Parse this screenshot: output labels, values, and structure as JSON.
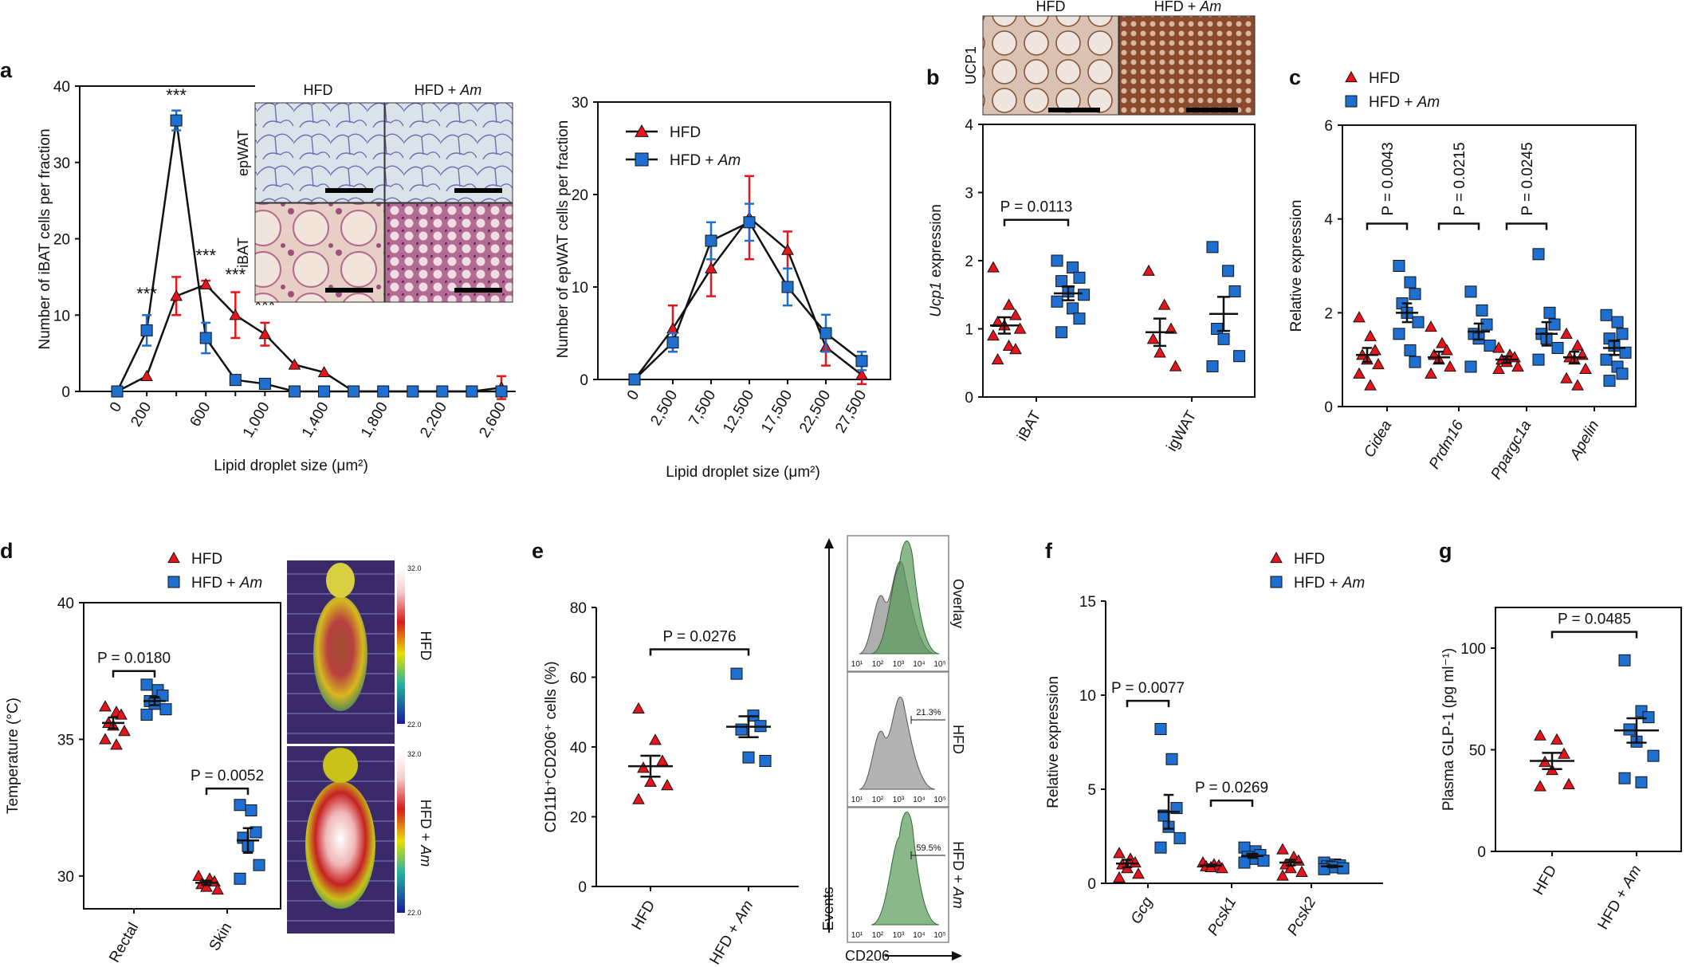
{
  "panels": {
    "a": {
      "letter": "a"
    },
    "b": {
      "letter": "b"
    },
    "c": {
      "letter": "c"
    },
    "d": {
      "letter": "d"
    },
    "e": {
      "letter": "e"
    },
    "f": {
      "letter": "f"
    },
    "g": {
      "letter": "g"
    }
  },
  "colors": {
    "hfd": "#e8141c",
    "am": "#1f6fd1",
    "axis": "#111111",
    "flow_grey": "#9a9a9a",
    "flow_green": "#5a9a5a"
  },
  "micrographs": {
    "a_cols": [
      "HFD",
      "HFD + Am"
    ],
    "a_rows": [
      "epWAT",
      "iBAT"
    ],
    "b_cols": [
      "HFD",
      "HFD + Am"
    ],
    "b_row": "UCP1",
    "d_temp_labels": [
      {
        "hi": "32.0",
        "lo": "22.0",
        "label": "HFD"
      },
      {
        "hi": "32.0",
        "lo": "22.0",
        "label": "HFD + Am"
      }
    ]
  },
  "flow": {
    "row_labels": [
      "Overlay",
      "HFD",
      "HFD + Am"
    ],
    "percent_labels": [
      "",
      "21.3%",
      "59.5%"
    ],
    "y_title": "Events",
    "x_title": "CD206",
    "ticks": [
      "10¹",
      "10²",
      "10³",
      "10⁴",
      "10⁵"
    ]
  },
  "chart_data": [
    {
      "panel": "a-left",
      "type": "line",
      "xlabel": "Lipid droplet size (μm²)",
      "ylabel": "Number of iBAT cells per fraction",
      "x_ticks": [
        "0",
        "200",
        "600",
        "1,000",
        "1,400",
        "1,800",
        "2,200",
        "2,600"
      ],
      "ylim": [
        0,
        40
      ],
      "y_ticks": [
        0,
        10,
        20,
        30,
        40
      ],
      "x": [
        0,
        200,
        400,
        600,
        800,
        1000,
        1200,
        1400,
        1600,
        1800,
        2000,
        2200,
        2400,
        2600
      ],
      "series": [
        {
          "name": "HFD",
          "values": [
            0,
            2,
            12.5,
            14,
            10,
            7.5,
            3.5,
            2.5,
            0,
            0,
            0,
            0,
            0,
            0.5
          ],
          "err": [
            0,
            0,
            2.5,
            0.5,
            3,
            1.5,
            0,
            0,
            0,
            0,
            0,
            0,
            0,
            1.5
          ]
        },
        {
          "name": "HFD + Am",
          "values": [
            0,
            8,
            35.5,
            7,
            1.5,
            1,
            0,
            0,
            0,
            0,
            0,
            0,
            0,
            0
          ],
          "err": [
            0,
            2,
            1.3,
            2,
            0,
            0,
            0,
            0,
            0,
            0,
            0,
            0,
            0,
            0
          ]
        }
      ],
      "annotations": [
        {
          "x": 200,
          "y": 12,
          "text": "***"
        },
        {
          "x": 400,
          "y": 38,
          "text": "***"
        },
        {
          "x": 600,
          "y": 17,
          "text": "***"
        },
        {
          "x": 800,
          "y": 14.5,
          "text": "***"
        },
        {
          "x": 1000,
          "y": 10.5,
          "text": "***"
        }
      ]
    },
    {
      "panel": "a-right",
      "type": "line",
      "xlabel": "Lipid droplet size (μm²)",
      "ylabel": "Number of epWAT cells per fraction",
      "x_ticks": [
        "0",
        "2,500",
        "7,500",
        "12,500",
        "17,500",
        "22,500",
        "27,500"
      ],
      "ylim": [
        0,
        30
      ],
      "y_ticks": [
        0,
        10,
        20,
        30
      ],
      "series": [
        {
          "name": "HFD",
          "values": [
            0,
            5.5,
            12,
            17.5,
            14,
            3.5,
            0.5
          ],
          "err": [
            0,
            2.5,
            3,
            4.5,
            2,
            2,
            1
          ]
        },
        {
          "name": "HFD + Am",
          "values": [
            0,
            4,
            15,
            17,
            10,
            5,
            2
          ],
          "err": [
            0,
            1,
            2,
            2,
            2,
            2,
            1
          ]
        }
      ],
      "legend": [
        "HFD",
        "HFD + Am"
      ]
    },
    {
      "panel": "b",
      "type": "scatter",
      "ylabel": "Ucp1 expression",
      "ylim": [
        0,
        4
      ],
      "y_ticks": [
        0,
        1,
        2,
        3,
        4
      ],
      "categories": [
        "iBAT",
        "igWAT"
      ],
      "groups": [
        {
          "category": "iBAT",
          "name": "HFD",
          "points": [
            1.9,
            1.35,
            1.2,
            1.1,
            1.05,
            1.0,
            0.9,
            0.75,
            0.7,
            0.55
          ],
          "mean": 1.05,
          "sem": 0.12
        },
        {
          "category": "iBAT",
          "name": "HFD + Am",
          "points": [
            2.0,
            1.9,
            1.75,
            1.7,
            1.55,
            1.5,
            1.4,
            1.3,
            1.15,
            0.95
          ],
          "mean": 1.52,
          "sem": 0.1
        },
        {
          "category": "igWAT",
          "name": "HFD",
          "points": [
            1.85,
            1.35,
            1.0,
            0.85,
            0.65,
            0.45
          ],
          "mean": 0.95,
          "sem": 0.2
        },
        {
          "category": "igWAT",
          "name": "HFD + Am",
          "points": [
            2.2,
            1.85,
            1.55,
            1.0,
            0.85,
            0.6,
            0.45
          ],
          "mean": 1.22,
          "sem": 0.25
        }
      ],
      "comparisons": [
        {
          "category": "iBAT",
          "text": "P = 0.0113",
          "y": 2.6
        }
      ]
    },
    {
      "panel": "c",
      "type": "scatter",
      "ylabel": "Relative expression",
      "ylim": [
        0,
        6
      ],
      "y_ticks": [
        0,
        2,
        4,
        6
      ],
      "categories": [
        "Cidea",
        "Prdm16",
        "Ppargc1a",
        "Apelin"
      ],
      "groups": [
        {
          "category": "Cidea",
          "name": "HFD",
          "points": [
            1.9,
            1.5,
            1.2,
            1.1,
            1.0,
            0.9,
            0.7,
            0.45
          ],
          "mean": 1.1,
          "sem": 0.15
        },
        {
          "category": "Cidea",
          "name": "HFD + Am",
          "points": [
            3.0,
            2.65,
            2.4,
            2.2,
            2.0,
            1.8,
            1.55,
            1.2,
            0.95
          ],
          "mean": 2.0,
          "sem": 0.2
        },
        {
          "category": "Prdm16",
          "name": "HFD",
          "points": [
            1.7,
            1.35,
            1.2,
            1.1,
            1.0,
            0.85,
            0.7
          ],
          "mean": 1.05,
          "sem": 0.12
        },
        {
          "category": "Prdm16",
          "name": "HFD + Am",
          "points": [
            2.45,
            2.05,
            1.75,
            1.55,
            1.45,
            1.3,
            0.85
          ],
          "mean": 1.6,
          "sem": 0.17
        },
        {
          "category": "Ppargc1a",
          "name": "HFD",
          "points": [
            1.25,
            1.1,
            1.05,
            1.0,
            0.95,
            0.85,
            0.8
          ],
          "mean": 1.0,
          "sem": 0.07
        },
        {
          "category": "Ppargc1a",
          "name": "HFD + Am",
          "points": [
            3.25,
            2.0,
            1.75,
            1.55,
            1.45,
            1.25,
            1.0
          ],
          "mean": 1.55,
          "sem": 0.25
        },
        {
          "category": "Apelin",
          "name": "HFD",
          "points": [
            1.55,
            1.3,
            1.1,
            1.05,
            1.0,
            0.8,
            0.6,
            0.45
          ],
          "mean": 1.05,
          "sem": 0.12
        },
        {
          "category": "Apelin",
          "name": "HFD + Am",
          "points": [
            1.95,
            1.8,
            1.55,
            1.45,
            1.3,
            1.15,
            1.0,
            0.85,
            0.7,
            0.55
          ],
          "mean": 1.25,
          "sem": 0.15
        }
      ],
      "comparisons": [
        {
          "category": "Cidea",
          "text": "P = 0.0043",
          "y": 3.9
        },
        {
          "category": "Prdm16",
          "text": "P = 0.0215",
          "y": 3.9
        },
        {
          "category": "Ppargc1a",
          "text": "P = 0.0245",
          "y": 3.9
        }
      ],
      "legend": [
        "HFD",
        "HFD + Am"
      ]
    },
    {
      "panel": "d",
      "type": "scatter",
      "ylabel": "Temperature (°C)",
      "ylim": [
        28.8,
        40
      ],
      "y_ticks": [
        30,
        35,
        40
      ],
      "categories": [
        "Rectal",
        "Skin"
      ],
      "groups": [
        {
          "category": "Rectal",
          "name": "HFD",
          "points": [
            36.2,
            36.0,
            35.9,
            35.6,
            35.5,
            35.3,
            35.0,
            34.8
          ],
          "mean": 35.6,
          "sem": 0.2
        },
        {
          "category": "Rectal",
          "name": "HFD + Am",
          "points": [
            37.0,
            36.8,
            36.6,
            36.4,
            36.3,
            36.1,
            35.9
          ],
          "mean": 36.4,
          "sem": 0.15
        },
        {
          "category": "Skin",
          "name": "HFD",
          "points": [
            30.0,
            29.9,
            29.8,
            29.7,
            29.6,
            29.5
          ],
          "mean": 29.75,
          "sem": 0.08
        },
        {
          "category": "Skin",
          "name": "HFD + Am",
          "points": [
            32.6,
            32.4,
            31.6,
            31.4,
            31.1,
            30.4,
            29.9
          ],
          "mean": 31.3,
          "sem": 0.45
        }
      ],
      "comparisons": [
        {
          "category": "Rectal",
          "text": "P = 0.0180",
          "y": 37.5
        },
        {
          "category": "Skin",
          "text": "P = 0.0052",
          "y": 33.2
        }
      ],
      "legend": [
        "HFD",
        "HFD + Am"
      ]
    },
    {
      "panel": "e",
      "type": "scatter",
      "ylabel": "CD11b⁺CD206⁺ cells (%)",
      "ylim": [
        0,
        80
      ],
      "y_ticks": [
        0,
        20,
        40,
        60,
        80
      ],
      "categories": [
        "HFD",
        "HFD + Am"
      ],
      "groups": [
        {
          "category": "HFD",
          "name": "HFD",
          "points": [
            51,
            42,
            36,
            34,
            30,
            29,
            25
          ],
          "mean": 34.5,
          "sem": 3
        },
        {
          "category": "HFD + Am",
          "name": "HFD + Am",
          "points": [
            61,
            49,
            46,
            45,
            37,
            36
          ],
          "mean": 45.8,
          "sem": 3
        },
        {
          "category": "HFD + Am",
          "name": "HFD + Am",
          "points": [],
          "mean": 45.8,
          "sem": 0
        }
      ],
      "comparisons": [
        {
          "between": [
            "HFD",
            "HFD + Am"
          ],
          "text": "P = 0.0276",
          "y": 68
        }
      ]
    },
    {
      "panel": "f",
      "type": "scatter",
      "ylabel": "Relative expression",
      "ylim": [
        0,
        15
      ],
      "y_ticks": [
        0,
        5,
        10,
        15
      ],
      "categories": [
        "Gcg",
        "Pcsk1",
        "Pcsk2"
      ],
      "groups": [
        {
          "category": "Gcg",
          "name": "HFD",
          "points": [
            1.6,
            1.3,
            1.1,
            1.0,
            0.8,
            0.5,
            0.3
          ],
          "mean": 1.05,
          "sem": 0.2
        },
        {
          "category": "Gcg",
          "name": "HFD + Am",
          "points": [
            8.2,
            6.6,
            4.0,
            3.6,
            3.0,
            2.4,
            1.9
          ],
          "mean": 3.8,
          "sem": 0.9
        },
        {
          "category": "Pcsk1",
          "name": "HFD",
          "points": [
            1.1,
            1.0,
            0.95,
            0.9,
            0.85,
            0.8
          ],
          "mean": 0.95,
          "sem": 0.05
        },
        {
          "category": "Pcsk1",
          "name": "HFD + Am",
          "points": [
            1.9,
            1.7,
            1.5,
            1.4,
            1.3,
            1.2,
            1.1
          ],
          "mean": 1.45,
          "sem": 0.1
        },
        {
          "category": "Pcsk2",
          "name": "HFD",
          "points": [
            1.8,
            1.4,
            1.2,
            1.0,
            0.8,
            0.6,
            0.4
          ],
          "mean": 1.1,
          "sem": 0.15
        },
        {
          "category": "Pcsk2",
          "name": "HFD + Am",
          "points": [
            1.1,
            1.0,
            0.95,
            0.9,
            0.85,
            0.8,
            0.75
          ],
          "mean": 0.9,
          "sem": 0.05
        }
      ],
      "comparisons": [
        {
          "category": "Gcg",
          "text": "P = 0.0077",
          "y": 9.7
        },
        {
          "category": "Pcsk1",
          "text": "P = 0.0269",
          "y": 4.4
        }
      ],
      "legend": [
        "HFD",
        "HFD + Am"
      ]
    },
    {
      "panel": "g",
      "type": "scatter",
      "ylabel": "Plasma GLP-1 (pg ml⁻¹)",
      "ylim": [
        0,
        120
      ],
      "y_ticks": [
        0,
        50,
        100
      ],
      "categories": [
        "HFD",
        "HFD + Am"
      ],
      "groups": [
        {
          "category": "HFD",
          "name": "HFD",
          "points": [
            57,
            55,
            48,
            44,
            40,
            33,
            32
          ],
          "mean": 44.5,
          "sem": 4
        },
        {
          "category": "HFD + Am",
          "name": "HFD + Am",
          "points": [
            94,
            69,
            66,
            60,
            54,
            47,
            36,
            34
          ],
          "mean": 59.5,
          "sem": 6
        }
      ],
      "comparisons": [
        {
          "between": [
            "HFD",
            "HFD + Am"
          ],
          "text": "P = 0.0485",
          "y": 108
        }
      ]
    }
  ]
}
